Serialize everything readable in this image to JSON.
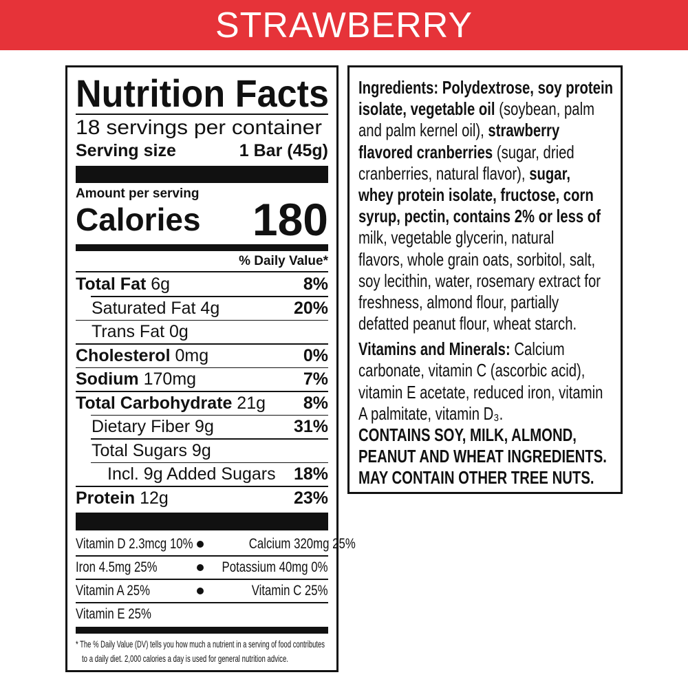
{
  "banner": {
    "title": "STRAWBERRY",
    "color": "#e63339"
  },
  "nutrition": {
    "title": "Nutrition Facts",
    "servings": "18 servings per container",
    "serving_size_label": "Serving size",
    "serving_size_value": "1 Bar (45g)",
    "amount_per_serving": "Amount per serving",
    "calories_label": "Calories",
    "calories_value": "180",
    "dv_header": "% Daily Value*",
    "nutrients": [
      {
        "name": "Total Fat",
        "amount": " 6g",
        "dv": "8%",
        "bold": true,
        "indent": 0
      },
      {
        "name": "Saturated Fat 4g",
        "amount": "",
        "dv": "20%",
        "bold": false,
        "indent": 1
      },
      {
        "name": "Trans Fat 0g",
        "amount": "",
        "dv": "",
        "bold": false,
        "indent": 1
      },
      {
        "name": "Cholesterol",
        "amount": " 0mg",
        "dv": "0%",
        "bold": true,
        "indent": 0
      },
      {
        "name": "Sodium",
        "amount": " 170mg",
        "dv": "7%",
        "bold": true,
        "indent": 0
      },
      {
        "name": "Total Carbohydrate",
        "amount": " 21g",
        "dv": "8%",
        "bold": true,
        "indent": 0
      },
      {
        "name": "Dietary Fiber 9g",
        "amount": "",
        "dv": "31%",
        "bold": false,
        "indent": 1
      },
      {
        "name": "Total Sugars 9g",
        "amount": "",
        "dv": "",
        "bold": false,
        "indent": 1
      },
      {
        "name": "Incl. 9g Added Sugars",
        "amount": "",
        "dv": "18%",
        "bold": false,
        "indent": 2
      },
      {
        "name": "Protein",
        "amount": " 12g",
        "dv": "23%",
        "bold": true,
        "indent": 0
      }
    ],
    "vitamins": [
      {
        "left": "Vitamin D 2.3mcg 10%",
        "right": "Calcium 320mg 25%"
      },
      {
        "left": "Iron 4.5mg 25%",
        "right": "Potassium 40mg 0%"
      },
      {
        "left": "Vitamin A 25%",
        "right": "Vitamin C 25%"
      },
      {
        "left": "Vitamin E 25%",
        "right": ""
      }
    ],
    "footnote_line1": "* The % Daily Value (DV) tells you how much a nutrient in a serving of food contributes",
    "footnote_line2": "to a daily diet. 2,000 calories a day is used for general nutrition advice."
  },
  "ingredients": {
    "lines": [
      [
        {
          "t": "Ingredients: Polydextrose, soy protein",
          "b": true
        }
      ],
      [
        {
          "t": "isolate, vegetable oil",
          "b": true
        },
        {
          "t": " (soybean, palm",
          "b": false
        }
      ],
      [
        {
          "t": "and palm kernel oil), ",
          "b": false
        },
        {
          "t": "strawberry",
          "b": true
        }
      ],
      [
        {
          "t": "flavored cranberries",
          "b": true
        },
        {
          "t": " (sugar, dried",
          "b": false
        }
      ],
      [
        {
          "t": "cranberries, natural flavor), ",
          "b": false
        },
        {
          "t": "sugar,",
          "b": true
        }
      ],
      [
        {
          "t": "whey protein isolate, fructose, corn",
          "b": true
        }
      ],
      [
        {
          "t": "syrup, pectin, contains 2% or less of",
          "b": true
        }
      ],
      [
        {
          "t": "milk, vegetable glycerin, natural",
          "b": false
        }
      ],
      [
        {
          "t": "flavors, whole grain oats, sorbitol, salt,",
          "b": false
        }
      ],
      [
        {
          "t": "soy lecithin, water, rosemary extract for",
          "b": false
        }
      ],
      [
        {
          "t": "freshness, almond flour, partially",
          "b": false
        }
      ],
      [
        {
          "t": "defatted peanut flour, wheat starch.",
          "b": false
        }
      ]
    ],
    "vitamin_lines": [
      [
        {
          "t": "Vitamins and Minerals:",
          "b": true
        },
        {
          "t": " Calcium",
          "b": false
        }
      ],
      [
        {
          "t": "carbonate, vitamin C (ascorbic acid),",
          "b": false
        }
      ],
      [
        {
          "t": "vitamin E acetate, reduced iron, vitamin",
          "b": false
        }
      ],
      [
        {
          "t": "A palmitate, vitamin D₃.",
          "b": false
        }
      ]
    ],
    "allergen_lines": [
      [
        {
          "t": "CONTAINS SOY, MILK, ALMOND,",
          "b": true
        }
      ],
      [
        {
          "t": "PEANUT AND WHEAT INGREDIENTS.",
          "b": true
        }
      ],
      [
        {
          "t": "MAY CONTAIN OTHER TREE NUTS.",
          "b": true
        }
      ]
    ]
  }
}
